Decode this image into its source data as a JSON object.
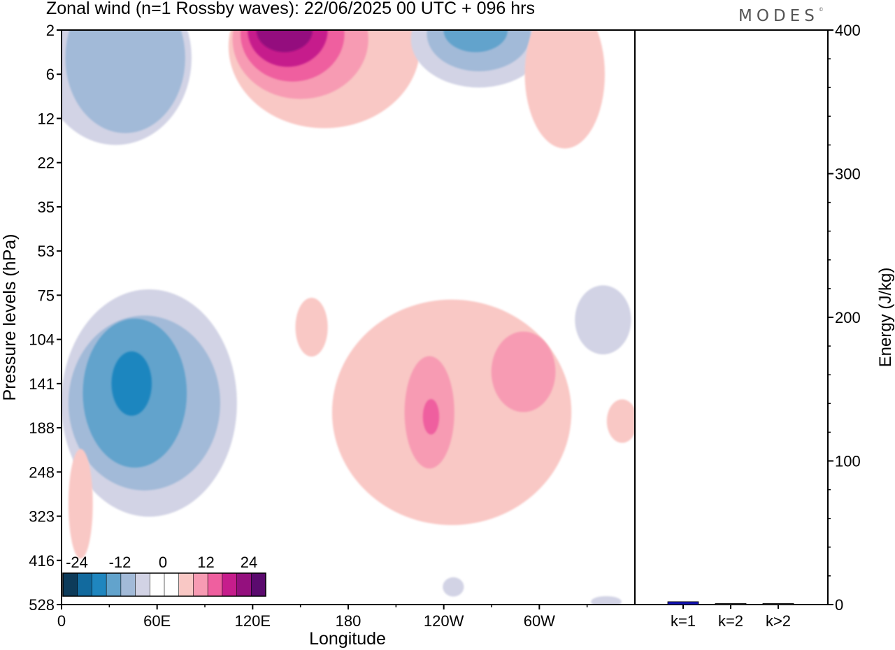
{
  "header": {
    "title": "Zonal wind (n=1 Rossby waves):  22/06/2025  00 UTC  + 096 hrs",
    "logo": "MODES",
    "logo_mark": "©"
  },
  "chart_data": [
    {
      "type": "heatmap",
      "title": "Zonal wind (n=1 Rossby waves):  22/06/2025  00 UTC  + 096 hrs",
      "xlabel": "Longitude",
      "ylabel": "Pressure levels (hPa)",
      "x_ticks": [
        "0",
        "60E",
        "120E",
        "180",
        "120W",
        "60W"
      ],
      "x_tick_degrees": [
        0,
        60,
        120,
        180,
        240,
        300
      ],
      "x_range": [
        0,
        360
      ],
      "y_levels": [
        "2",
        "6",
        "12",
        "22",
        "35",
        "53",
        "75",
        "104",
        "141",
        "188",
        "248",
        "323",
        "416",
        "528"
      ],
      "colorbar": {
        "labels": [
          "-24",
          "-12",
          "0",
          "12",
          "24"
        ],
        "colors": [
          "#0d3b5a",
          "#126a9e",
          "#1f86bf",
          "#62a3cc",
          "#a2bad8",
          "#d2d3e5",
          "#ffffff",
          "#ffffff",
          "#f9c8c5",
          "#f79bb3",
          "#ef5f9f",
          "#c61d8c",
          "#94107e",
          "#5b0a6e"
        ]
      },
      "contours": [
        {
          "level": -3,
          "color": "#d2d3e5",
          "lon": 34,
          "plev": 4,
          "w": 90,
          "h": 60
        },
        {
          "level": -6,
          "color": "#a2bad8",
          "lon": 40,
          "plev": 4,
          "w": 70,
          "h": 45
        },
        {
          "level": 3,
          "color": "#f9c8c5",
          "lon": 165,
          "plev": 3,
          "w": 115,
          "h": 55
        },
        {
          "level": 6,
          "color": "#f79bb3",
          "lon": 150,
          "plev": 2.5,
          "w": 80,
          "h": 32
        },
        {
          "level": 12,
          "color": "#ef5f9f",
          "lon": 145,
          "plev": 2.2,
          "w": 60,
          "h": 22
        },
        {
          "level": 18,
          "color": "#c61d8c",
          "lon": 142,
          "plev": 2,
          "w": 45,
          "h": 15
        },
        {
          "level": 21,
          "color": "#94107e",
          "lon": 140,
          "plev": 2,
          "w": 30,
          "h": 8
        },
        {
          "level": -3,
          "color": "#d2d3e5",
          "lon": 262,
          "plev": 2.5,
          "w": 80,
          "h": 22
        },
        {
          "level": -6,
          "color": "#a2bad8",
          "lon": 262,
          "plev": 2.2,
          "w": 60,
          "h": 15
        },
        {
          "level": -9,
          "color": "#62a3cc",
          "lon": 260,
          "plev": 2,
          "w": 35,
          "h": 8
        },
        {
          "level": 3,
          "color": "#f9c8c5",
          "lon": 316,
          "plev": 6,
          "w": 45,
          "h": 40
        },
        {
          "level": -3,
          "color": "#d2d3e5",
          "lon": 55,
          "plev": 160,
          "w": 105,
          "h": 210
        },
        {
          "level": -6,
          "color": "#a2bad8",
          "lon": 52,
          "plev": 160,
          "w": 90,
          "h": 170
        },
        {
          "level": -9,
          "color": "#62a3cc",
          "lon": 46,
          "plev": 150,
          "w": 60,
          "h": 140
        },
        {
          "level": -12,
          "color": "#1f86bf",
          "lon": 44,
          "plev": 141,
          "w": 20,
          "h": 60
        },
        {
          "level": 3,
          "color": "#f9c8c5",
          "lon": 245,
          "plev": 170,
          "w": 145,
          "h": 220
        },
        {
          "level": 3,
          "color": "#f9c8c5",
          "lon": 157,
          "plev": 95,
          "w": 15,
          "h": 40
        },
        {
          "level": 6,
          "color": "#f79bb3",
          "lon": 231,
          "plev": 170,
          "w": 26,
          "h": 120
        },
        {
          "level": 12,
          "color": "#ef5f9f",
          "lon": 232,
          "plev": 175,
          "w": 5,
          "h": 40
        },
        {
          "level": 6,
          "color": "#f79bb3",
          "lon": 290,
          "plev": 130,
          "w": 35,
          "h": 70
        },
        {
          "level": 3,
          "color": "#f9c8c5",
          "lon": 352,
          "plev": 180,
          "w": 14,
          "h": 50
        },
        {
          "level": 3,
          "color": "#f9c8c5",
          "lon": 12,
          "plev": 300,
          "w": 10,
          "h": 190
        },
        {
          "level": -3,
          "color": "#d2d3e5",
          "lon": 340,
          "plev": 90,
          "w": 30,
          "h": 45
        },
        {
          "level": -3,
          "color": "#d2d3e5",
          "lon": 246,
          "plev": 480,
          "w": 8,
          "h": 50
        },
        {
          "level": -3,
          "color": "#d2d3e5",
          "lon": 342,
          "plev": 520,
          "w": 14,
          "h": 25
        }
      ]
    },
    {
      "type": "bar",
      "ylabel": "Energy (J/kg)",
      "ylim": [
        0,
        400
      ],
      "y_ticks": [
        "0",
        "100",
        "200",
        "300",
        "400"
      ],
      "categories": [
        "k=1",
        "k=2",
        "k>2"
      ],
      "values": [
        2,
        0.4,
        0.4
      ],
      "bar_colors": [
        "#1414b4",
        "#444444",
        "#444444"
      ]
    }
  ]
}
